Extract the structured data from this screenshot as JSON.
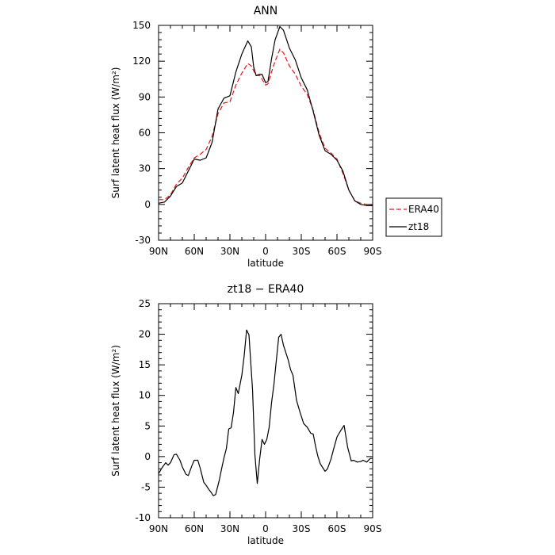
{
  "chart_data": [
    {
      "type": "line",
      "title": "ANN",
      "xlabel": "latitude",
      "ylabel": "Surf latent heat flux (W/m²)",
      "xlim": [
        90,
        -90
      ],
      "ylim": [
        -30,
        150
      ],
      "x_ticks": [
        {
          "value": 90,
          "label": "90N"
        },
        {
          "value": 60,
          "label": "60N"
        },
        {
          "value": 30,
          "label": "30N"
        },
        {
          "value": 0,
          "label": "0"
        },
        {
          "value": -30,
          "label": "30S"
        },
        {
          "value": -60,
          "label": "60S"
        },
        {
          "value": -90,
          "label": "90S"
        }
      ],
      "y_ticks": [
        -30,
        0,
        30,
        60,
        90,
        120,
        150
      ],
      "legend": {
        "placement": "outside-right"
      },
      "series": [
        {
          "name": "ERA40",
          "color": "#e8141c",
          "dash": "dashed",
          "x": [
            90,
            85,
            80,
            75,
            70,
            65,
            60,
            55,
            50,
            45,
            40,
            35,
            30,
            25,
            20,
            15,
            12,
            10,
            8,
            5,
            3,
            0,
            -2,
            -5,
            -8,
            -12,
            -15,
            -20,
            -25,
            -30,
            -35,
            -40,
            -45,
            -50,
            -55,
            -60,
            -65,
            -70,
            -75,
            -80,
            -85,
            -90
          ],
          "y": [
            4,
            4,
            8,
            17,
            22,
            31,
            39,
            42,
            46,
            57,
            76,
            85,
            86,
            100,
            110,
            118,
            116,
            112,
            108,
            108,
            105,
            100,
            101,
            111,
            120,
            130,
            127,
            116,
            109,
            99,
            92,
            79,
            60,
            47,
            43,
            38,
            26,
            12,
            3,
            1,
            0,
            -1
          ]
        },
        {
          "name": "zt18",
          "color": "#000000",
          "dash": "solid",
          "x": [
            90,
            85,
            80,
            75,
            70,
            65,
            60,
            55,
            50,
            45,
            40,
            35,
            30,
            25,
            20,
            15,
            12,
            10,
            8,
            5,
            3,
            0,
            -2,
            -5,
            -8,
            -12,
            -15,
            -20,
            -25,
            -30,
            -35,
            -40,
            -45,
            -50,
            -55,
            -60,
            -65,
            -70,
            -75,
            -80,
            -85,
            -90
          ],
          "y": [
            1,
            2,
            7,
            15,
            18,
            28,
            38,
            37,
            39,
            52,
            80,
            89,
            91,
            111,
            126,
            137,
            132,
            115,
            108,
            109,
            109,
            102,
            103,
            122,
            138,
            149,
            146,
            131,
            121,
            106,
            96,
            78,
            58,
            45,
            42,
            37,
            28,
            12,
            3,
            0,
            -1,
            -1
          ]
        }
      ]
    },
    {
      "type": "line",
      "title": "zt18 − ERA40",
      "xlabel": "latitude",
      "ylabel": "Surf latent heat flux (W/m²)",
      "xlim": [
        90,
        -90
      ],
      "ylim": [
        -10,
        25
      ],
      "x_ticks": [
        {
          "value": 90,
          "label": "90N"
        },
        {
          "value": 60,
          "label": "60N"
        },
        {
          "value": 30,
          "label": "30N"
        },
        {
          "value": 0,
          "label": "0"
        },
        {
          "value": -30,
          "label": "30S"
        },
        {
          "value": -60,
          "label": "60S"
        },
        {
          "value": -90,
          "label": "90S"
        }
      ],
      "y_ticks": [
        -10,
        -5,
        0,
        5,
        10,
        15,
        20,
        25
      ],
      "series": [
        {
          "color": "#000000",
          "dash": "solid",
          "x": [
            90,
            87,
            84,
            82,
            80,
            77,
            75,
            72,
            70,
            67,
            65,
            62,
            60,
            57,
            55,
            52,
            50,
            48,
            46,
            44,
            42,
            39,
            37,
            35,
            33,
            31,
            29,
            27,
            25,
            23,
            20,
            18,
            16,
            14,
            11,
            9,
            7,
            5,
            3,
            1,
            -1,
            -3,
            -5,
            -7,
            -9,
            -11,
            -13,
            -15,
            -17,
            -19,
            -21,
            -23,
            -26,
            -29,
            -32,
            -35,
            -38,
            -40,
            -42,
            -44,
            -46,
            -48,
            -50,
            -52,
            -55,
            -57,
            -60,
            -63,
            -66,
            -69,
            -72,
            -74,
            -77,
            -80,
            -82,
            -85,
            -88,
            -90
          ],
          "y": [
            -2.8,
            -1.8,
            -1.0,
            -1.4,
            -1.0,
            0.3,
            0.4,
            -0.6,
            -1.7,
            -2.9,
            -3.1,
            -1.5,
            -0.6,
            -0.6,
            -1.9,
            -4.2,
            -4.7,
            -5.3,
            -5.8,
            -6.4,
            -6.2,
            -3.9,
            -2.0,
            -0.2,
            1.3,
            4.5,
            4.7,
            7.2,
            11.3,
            10.3,
            13.3,
            16.5,
            20.7,
            19.9,
            11.0,
            0.3,
            -4.4,
            -0.4,
            2.8,
            2.0,
            2.8,
            4.8,
            8.8,
            11.8,
            15.7,
            19.5,
            20.0,
            18.2,
            17.0,
            15.8,
            14.2,
            13.3,
            9.2,
            7.2,
            5.4,
            4.8,
            3.8,
            3.7,
            1.7,
            0.0,
            -1.2,
            -1.8,
            -2.4,
            -2.0,
            -0.4,
            1.1,
            3.2,
            4.2,
            5.1,
            1.5,
            -0.7,
            -0.6,
            -0.9,
            -0.8,
            -0.6,
            -0.9,
            -0.3,
            -0.3
          ]
        }
      ]
    }
  ]
}
